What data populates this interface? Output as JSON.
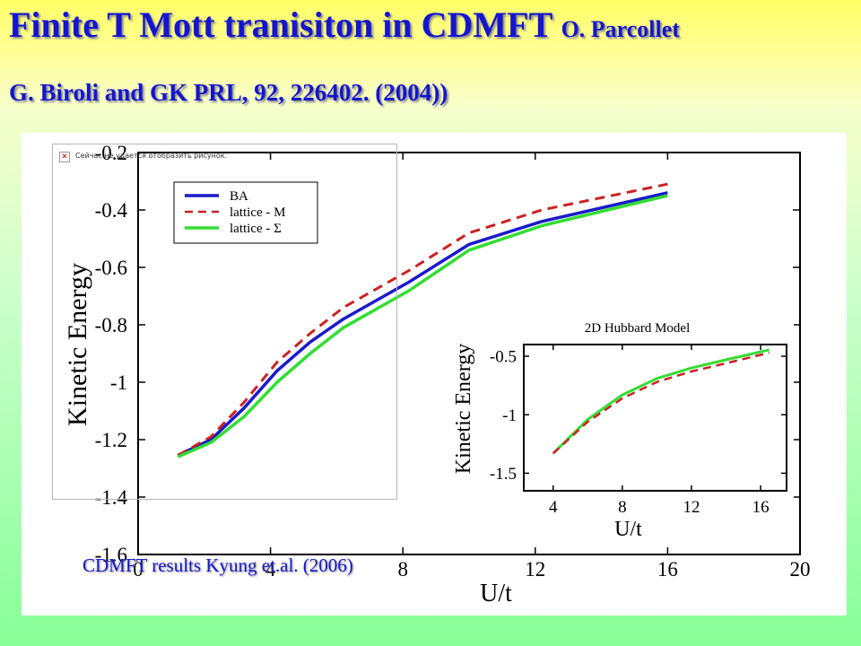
{
  "slide": {
    "title": "Finite T Mott tranisiton in CDMFT",
    "title_author": "O. Parcollet",
    "subtitle": "G. Biroli and GK PRL,  92,  226402. (2004))",
    "caption": "CDMFT results Kyung et.al. (2006)",
    "image_placeholder_text": "Сейчас не удается отобразить рисунок.",
    "colors": {
      "title_blue": "#1515d0",
      "background_top": "#ffff66",
      "background_bottom": "#88ff99"
    }
  },
  "chart_data": [
    {
      "type": "line",
      "title": "",
      "xlabel": "U/t",
      "ylabel": "Kinetic Energy",
      "xlim": [
        0,
        20
      ],
      "ylim": [
        -1.6,
        -0.2
      ],
      "xticks": [
        0,
        4,
        8,
        12,
        16,
        20
      ],
      "yticks": [
        -1.6,
        -1.4,
        -1.2,
        -1,
        -0.8,
        -0.6,
        -0.4,
        -0.2
      ],
      "ytick_labels": [
        "-1.6",
        "-1.4",
        "-1.2",
        "-1",
        "-0.8",
        "-0.6",
        "-0.4",
        "-0.2"
      ],
      "legend": {
        "placement": "top-left",
        "entries": [
          "BA",
          "lattice - M",
          "lattice - Σ"
        ]
      },
      "series": [
        {
          "name": "BA",
          "color": "#1a1acc",
          "dash": "solid",
          "x": [
            1.2,
            2.2,
            3.2,
            4.2,
            5.2,
            6.2,
            8.2,
            10.0,
            12.2,
            16.0
          ],
          "y": [
            -1.255,
            -1.2,
            -1.09,
            -0.96,
            -0.86,
            -0.78,
            -0.65,
            -0.52,
            -0.44,
            -0.34
          ]
        },
        {
          "name": "lattice - M",
          "color": "#cc2222",
          "dash": "dashed",
          "x": [
            1.2,
            2.2,
            3.2,
            4.2,
            5.2,
            6.2,
            8.2,
            10.0,
            12.2,
            16.0
          ],
          "y": [
            -1.255,
            -1.19,
            -1.07,
            -0.93,
            -0.83,
            -0.74,
            -0.61,
            -0.48,
            -0.4,
            -0.31
          ]
        },
        {
          "name": "lattice - Σ",
          "color": "#33dd33",
          "dash": "solid",
          "x": [
            1.2,
            2.2,
            3.2,
            4.2,
            5.2,
            6.2,
            8.2,
            10.0,
            12.2,
            16.0
          ],
          "y": [
            -1.26,
            -1.21,
            -1.12,
            -1.0,
            -0.9,
            -0.81,
            -0.68,
            -0.54,
            -0.455,
            -0.35
          ]
        }
      ]
    },
    {
      "type": "line",
      "title": "2D Hubbard Model",
      "xlabel": "U/t",
      "ylabel": "Kinetic Energy",
      "xlim": [
        2.3,
        17.5
      ],
      "ylim": [
        -1.65,
        -0.4
      ],
      "xticks": [
        4,
        8,
        12,
        16
      ],
      "yticks": [
        -1.5,
        -1,
        -0.5
      ],
      "ytick_labels": [
        "-1.5",
        "-1",
        "-0.5"
      ],
      "series": [
        {
          "name": "",
          "color": "#33dd33",
          "dash": "solid",
          "x": [
            4.0,
            6.0,
            8.0,
            10.0,
            12.0,
            14.0,
            16.5
          ],
          "y": [
            -1.33,
            -1.04,
            -0.83,
            -0.69,
            -0.6,
            -0.53,
            -0.445
          ]
        },
        {
          "name": "",
          "color": "#cc2222",
          "dash": "dashed",
          "x": [
            4.0,
            6.0,
            8.0,
            10.0,
            12.0,
            14.0,
            16.5
          ],
          "y": [
            -1.33,
            -1.06,
            -0.86,
            -0.72,
            -0.63,
            -0.56,
            -0.47
          ]
        }
      ]
    }
  ]
}
